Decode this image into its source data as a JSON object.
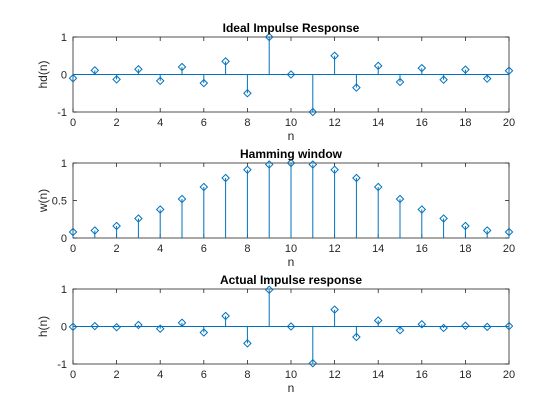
{
  "chart_data": [
    {
      "type": "stem",
      "title": "Ideal Impulse Response",
      "xlabel": "n",
      "ylabel": "hd(n)",
      "xlim": [
        0,
        20
      ],
      "ylim": [
        -1,
        1
      ],
      "xticks": [
        0,
        2,
        4,
        6,
        8,
        10,
        12,
        14,
        16,
        18,
        20
      ],
      "yticks": [
        -1,
        0,
        1
      ],
      "x": [
        0,
        1,
        2,
        3,
        4,
        5,
        6,
        7,
        8,
        9,
        10,
        11,
        12,
        13,
        14,
        15,
        16,
        17,
        18,
        19,
        20
      ],
      "values": [
        -0.1,
        0.11,
        -0.13,
        0.14,
        -0.17,
        0.2,
        -0.23,
        0.35,
        -0.5,
        1.0,
        0,
        -1.0,
        0.5,
        -0.35,
        0.23,
        -0.2,
        0.17,
        -0.14,
        0.13,
        -0.11,
        0.1
      ]
    },
    {
      "type": "stem",
      "title": "Hamming window",
      "xlabel": "n",
      "ylabel": "w(n)",
      "xlim": [
        0,
        20
      ],
      "ylim": [
        0,
        1
      ],
      "xticks": [
        0,
        2,
        4,
        6,
        8,
        10,
        12,
        14,
        16,
        18,
        20
      ],
      "yticks": [
        0,
        0.5,
        1
      ],
      "x": [
        0,
        1,
        2,
        3,
        4,
        5,
        6,
        7,
        8,
        9,
        10,
        11,
        12,
        13,
        14,
        15,
        16,
        17,
        18,
        19,
        20
      ],
      "values": [
        0.08,
        0.1,
        0.16,
        0.26,
        0.38,
        0.52,
        0.68,
        0.8,
        0.91,
        0.98,
        1.0,
        0.98,
        0.91,
        0.8,
        0.68,
        0.52,
        0.38,
        0.26,
        0.16,
        0.1,
        0.08
      ]
    },
    {
      "type": "stem",
      "title": "Actual Impulse response",
      "xlabel": "n",
      "ylabel": "h(n)",
      "xlim": [
        0,
        20
      ],
      "ylim": [
        -1,
        1
      ],
      "xticks": [
        0,
        2,
        4,
        6,
        8,
        10,
        12,
        14,
        16,
        18,
        20
      ],
      "yticks": [
        -1,
        0,
        1
      ],
      "x": [
        0,
        1,
        2,
        3,
        4,
        5,
        6,
        7,
        8,
        9,
        10,
        11,
        12,
        13,
        14,
        15,
        16,
        17,
        18,
        19,
        20
      ],
      "values": [
        -0.01,
        0.01,
        -0.02,
        0.04,
        -0.06,
        0.1,
        -0.16,
        0.28,
        -0.45,
        0.98,
        0,
        -0.98,
        0.45,
        -0.28,
        0.16,
        -0.1,
        0.06,
        -0.04,
        0.02,
        -0.01,
        0.01
      ]
    }
  ],
  "colors": {
    "stem": "#0072BD",
    "axes": "#262626"
  }
}
